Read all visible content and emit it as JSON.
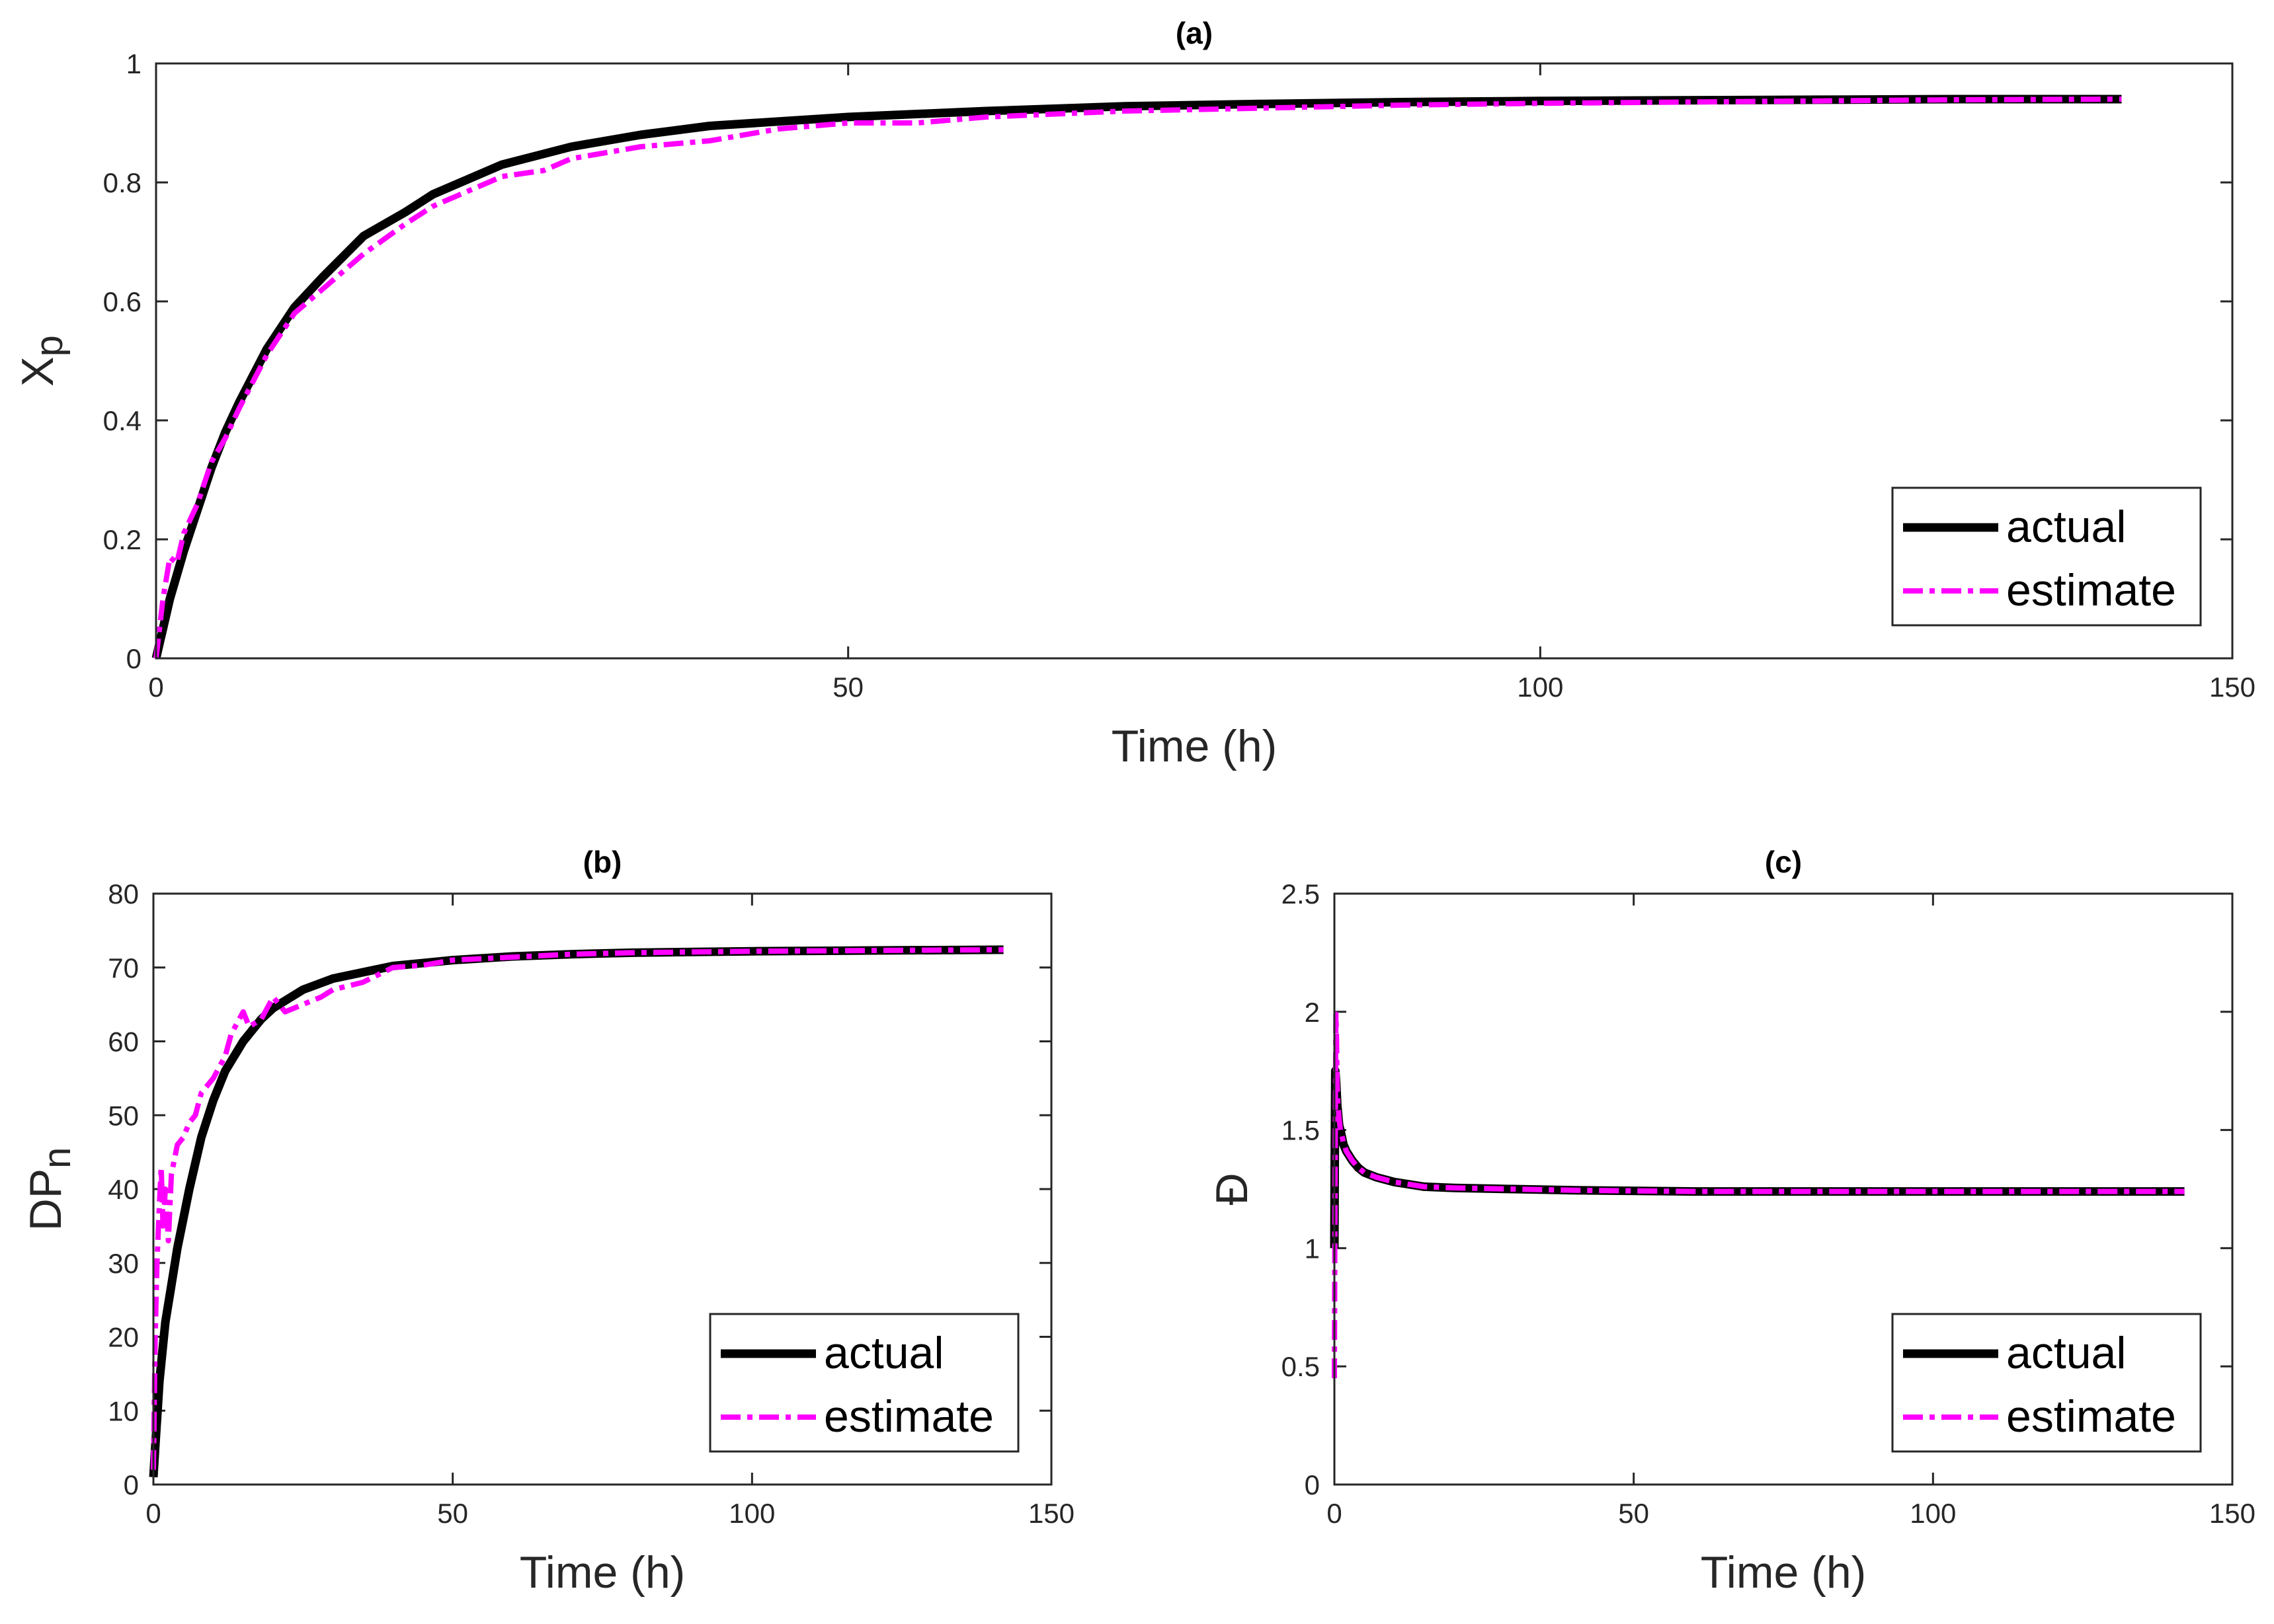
{
  "colors": {
    "actual": "#000000",
    "estimate": "#ff00ff"
  },
  "chart_data": [
    {
      "id": "a",
      "type": "line",
      "title": "(a)",
      "xlabel": "Time (h)",
      "ylabel_main": "X",
      "ylabel_sub": "p",
      "xlim": [
        0,
        150
      ],
      "ylim": [
        0,
        1
      ],
      "xticks": [
        0,
        50,
        100,
        150
      ],
      "yticks": [
        0,
        0.2,
        0.4,
        0.6,
        0.8,
        1
      ],
      "xtick_labels": [
        "0",
        "50",
        "100",
        "150"
      ],
      "ytick_labels": [
        "0",
        "0.2",
        "0.4",
        "0.6",
        "0.8",
        "1"
      ],
      "legend": {
        "position": "bottom-right",
        "entries": [
          "actual",
          "estimate"
        ]
      },
      "series": [
        {
          "name": "actual",
          "style": "solid",
          "x": [
            0,
            0.5,
            1,
            2,
            3,
            4,
            5,
            6,
            8,
            10,
            12,
            15,
            18,
            20,
            25,
            30,
            35,
            40,
            50,
            60,
            70,
            80,
            90,
            100,
            110,
            120,
            130,
            142
          ],
          "y": [
            0,
            0.05,
            0.1,
            0.18,
            0.25,
            0.32,
            0.38,
            0.43,
            0.52,
            0.59,
            0.64,
            0.71,
            0.75,
            0.78,
            0.83,
            0.86,
            0.88,
            0.895,
            0.91,
            0.92,
            0.928,
            0.932,
            0.935,
            0.937,
            0.938,
            0.939,
            0.94,
            0.94
          ]
        },
        {
          "name": "estimate",
          "style": "dashdot",
          "x": [
            0,
            0.5,
            1,
            1.5,
            2,
            3,
            4,
            5,
            6,
            8,
            10,
            12,
            15,
            18,
            20,
            22,
            25,
            28,
            30,
            35,
            40,
            45,
            50,
            55,
            60,
            70,
            80,
            90,
            100,
            110,
            120,
            130,
            142
          ],
          "y": [
            0,
            0.1,
            0.17,
            0.16,
            0.21,
            0.26,
            0.33,
            0.37,
            0.42,
            0.51,
            0.58,
            0.62,
            0.68,
            0.73,
            0.76,
            0.78,
            0.81,
            0.82,
            0.84,
            0.86,
            0.87,
            0.89,
            0.9,
            0.9,
            0.91,
            0.92,
            0.925,
            0.93,
            0.933,
            0.935,
            0.937,
            0.939,
            0.94
          ]
        }
      ]
    },
    {
      "id": "b",
      "type": "line",
      "title": "(b)",
      "xlabel": "Time (h)",
      "ylabel_main": "DP",
      "ylabel_sub": "n",
      "xlim": [
        0,
        150
      ],
      "ylim": [
        0,
        80
      ],
      "xticks": [
        0,
        50,
        100,
        150
      ],
      "yticks": [
        0,
        10,
        20,
        30,
        40,
        50,
        60,
        70,
        80
      ],
      "xtick_labels": [
        "0",
        "50",
        "100",
        "150"
      ],
      "ytick_labels": [
        "0",
        "10",
        "20",
        "30",
        "40",
        "50",
        "60",
        "70",
        "80"
      ],
      "legend": {
        "position": "bottom-right",
        "entries": [
          "actual",
          "estimate"
        ]
      },
      "series": [
        {
          "name": "actual",
          "style": "solid",
          "x": [
            0,
            0.3,
            0.7,
            1,
            1.5,
            2,
            3,
            4,
            5,
            6,
            8,
            10,
            12,
            15,
            18,
            20,
            25,
            30,
            40,
            50,
            60,
            70,
            80,
            90,
            100,
            120,
            142
          ],
          "y": [
            1,
            5,
            10,
            14,
            18,
            22,
            27,
            32,
            36,
            40,
            47,
            52,
            56,
            60,
            63,
            64.5,
            67,
            68.5,
            70.2,
            71,
            71.5,
            71.8,
            72,
            72.1,
            72.2,
            72.3,
            72.4
          ]
        },
        {
          "name": "estimate",
          "style": "dashdot",
          "x": [
            0,
            0.3,
            0.6,
            1,
            1.3,
            1.6,
            2,
            2.5,
            3,
            4,
            5,
            6,
            7,
            8,
            10,
            12,
            13,
            15,
            16,
            18,
            20,
            22,
            25,
            28,
            30,
            35,
            40,
            45,
            50,
            60,
            70,
            80,
            90,
            100,
            120,
            142
          ],
          "y": [
            2,
            20,
            30,
            38,
            43,
            35,
            40,
            33,
            42,
            46,
            47,
            49,
            50,
            53,
            55,
            58,
            61,
            64,
            62,
            63,
            66,
            64,
            65,
            66,
            67,
            68,
            70,
            70.3,
            71,
            71.4,
            71.8,
            72,
            72.1,
            72.2,
            72.3,
            72.4
          ]
        }
      ]
    },
    {
      "id": "c",
      "type": "line",
      "title": "(c)",
      "xlabel": "Time (h)",
      "ylabel_main": "Đ",
      "ylabel_sub": "",
      "xlim": [
        0,
        150
      ],
      "ylim": [
        0,
        2.5
      ],
      "xticks": [
        0,
        50,
        100,
        150
      ],
      "yticks": [
        0,
        0.5,
        1,
        1.5,
        2,
        2.5
      ],
      "xtick_labels": [
        "0",
        "50",
        "100",
        "150"
      ],
      "ytick_labels": [
        "0",
        "0.5",
        "1",
        "1.5",
        "2",
        "2.5"
      ],
      "legend": {
        "position": "bottom-right",
        "entries": [
          "actual",
          "estimate"
        ]
      },
      "series": [
        {
          "name": "actual",
          "style": "solid",
          "x": [
            0,
            0.05,
            0.15,
            0.3,
            0.5,
            0.8,
            1,
            1.5,
            2,
            3,
            4,
            5,
            7,
            10,
            15,
            20,
            30,
            40,
            60,
            80,
            100,
            120,
            142
          ],
          "y": [
            1.0,
            1.35,
            1.75,
            1.7,
            1.6,
            1.52,
            1.5,
            1.44,
            1.41,
            1.37,
            1.34,
            1.32,
            1.3,
            1.28,
            1.26,
            1.255,
            1.25,
            1.245,
            1.24,
            1.24,
            1.24,
            1.24,
            1.24
          ]
        },
        {
          "name": "estimate",
          "style": "dashdot",
          "x": [
            0,
            0.08,
            0.15,
            0.25,
            0.35,
            0.45,
            0.6,
            0.8,
            1,
            1.5,
            2,
            3,
            4,
            5,
            7,
            10,
            15,
            20,
            30,
            40,
            60,
            80,
            100,
            120,
            142
          ],
          "y": [
            0.45,
            1.0,
            1.5,
            1.99,
            1.9,
            1.7,
            1.6,
            1.55,
            1.5,
            1.45,
            1.41,
            1.37,
            1.34,
            1.32,
            1.3,
            1.28,
            1.26,
            1.255,
            1.25,
            1.245,
            1.24,
            1.24,
            1.24,
            1.24,
            1.24
          ]
        }
      ]
    }
  ]
}
